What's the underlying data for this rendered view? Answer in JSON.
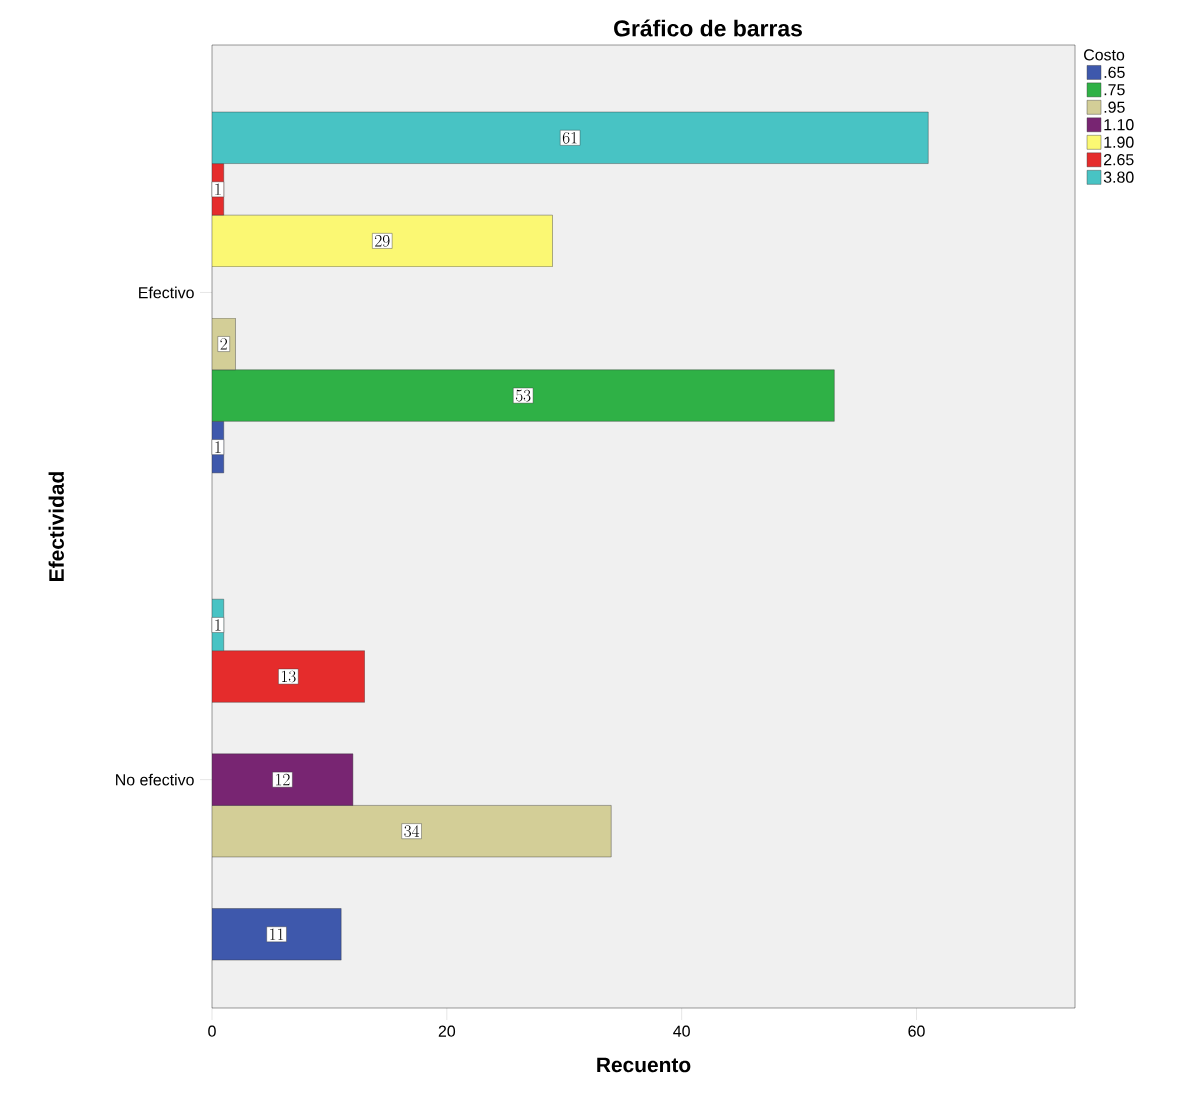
{
  "chart_data": {
    "type": "bar",
    "orientation": "horizontal",
    "title": "Gráfico de barras",
    "xlabel": "Recuento",
    "ylabel": "Efectividad",
    "legend_title": "Costo",
    "categories": [
      "Efectivo",
      "No efectivo"
    ],
    "series": [
      {
        "name": ".65",
        "color": "#3e58ac",
        "values": [
          1,
          11
        ]
      },
      {
        "name": ".75",
        "color": "#2fb146",
        "values": [
          53,
          null
        ]
      },
      {
        "name": ".95",
        "color": "#d3ce97",
        "values": [
          2,
          34
        ]
      },
      {
        "name": "1.10",
        "color": "#782572",
        "values": [
          null,
          12
        ]
      },
      {
        "name": "1.90",
        "color": "#fbf873",
        "values": [
          29,
          null
        ]
      },
      {
        "name": "2.65",
        "color": "#e52c2c",
        "values": [
          1,
          13
        ]
      },
      {
        "name": "3.80",
        "color": "#48c3c4",
        "values": [
          61,
          1
        ]
      }
    ],
    "xlim": [
      0,
      73.5
    ],
    "xticks": [
      0,
      20,
      40,
      60
    ],
    "data_labels": true,
    "legend": "top right",
    "grid": false
  }
}
